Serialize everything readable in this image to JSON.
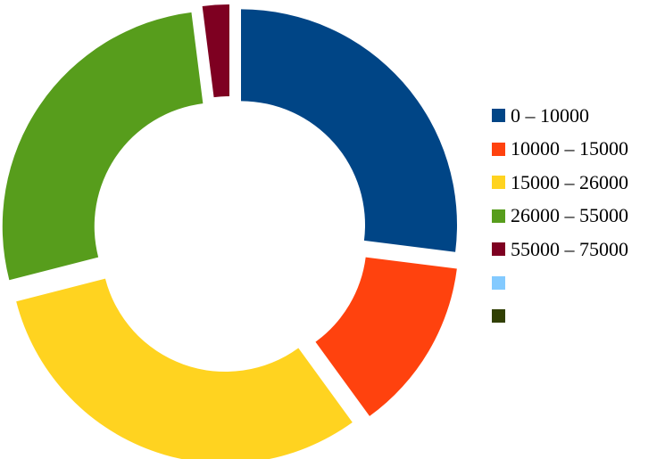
{
  "chart_data": {
    "type": "pie",
    "style": "exploded-donut",
    "title": "",
    "categories": [
      "0 – 10000",
      "10000 – 15000",
      "15000 – 26000",
      "26000 – 55000",
      "55000 – 75000",
      "",
      ""
    ],
    "values": [
      27,
      13,
      31,
      27,
      2,
      0,
      0
    ],
    "colors": [
      "#004586",
      "#ff420e",
      "#ffd320",
      "#579d1c",
      "#7e0021",
      "#83caff",
      "#314004"
    ],
    "legend_position": "right"
  }
}
